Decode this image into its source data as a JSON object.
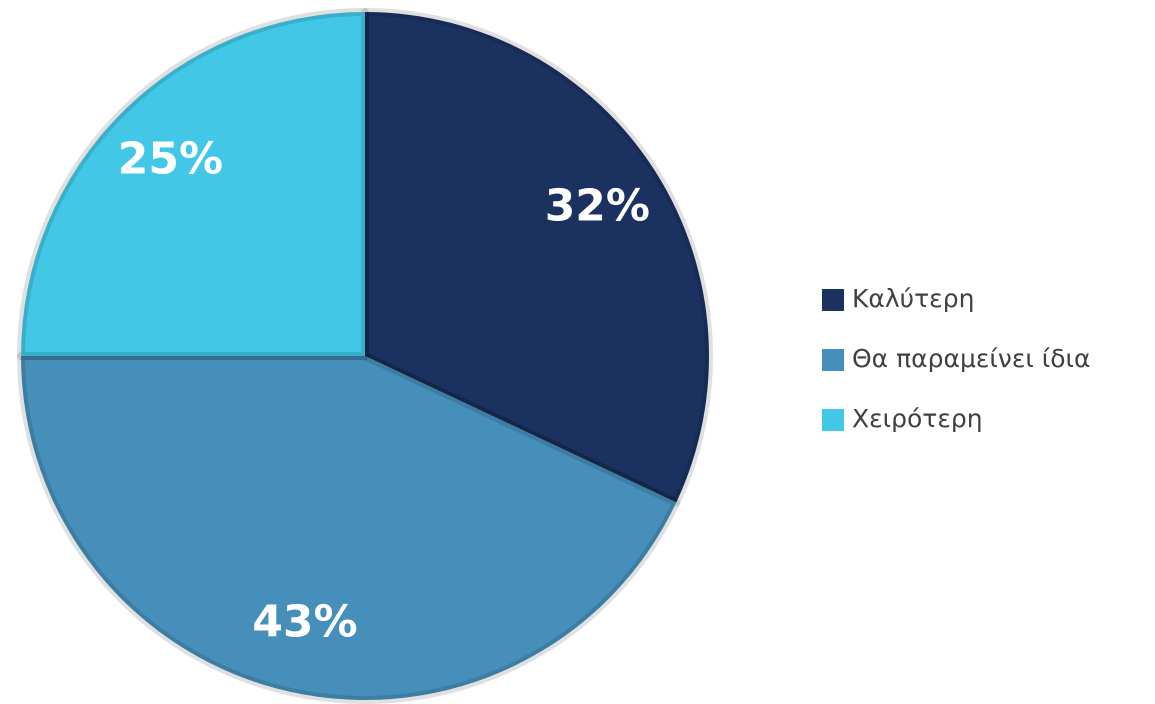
{
  "chart_data": {
    "type": "pie",
    "categories": [
      "Καλύτερη",
      "Θα παραμείνει ίδια",
      "Χειρότερη"
    ],
    "values": [
      32,
      43,
      25
    ],
    "value_labels": [
      "32%",
      "43%",
      "25%"
    ],
    "colors": [
      "#1b3260",
      "#458fba",
      "#42c8e6"
    ],
    "legend": "right"
  }
}
